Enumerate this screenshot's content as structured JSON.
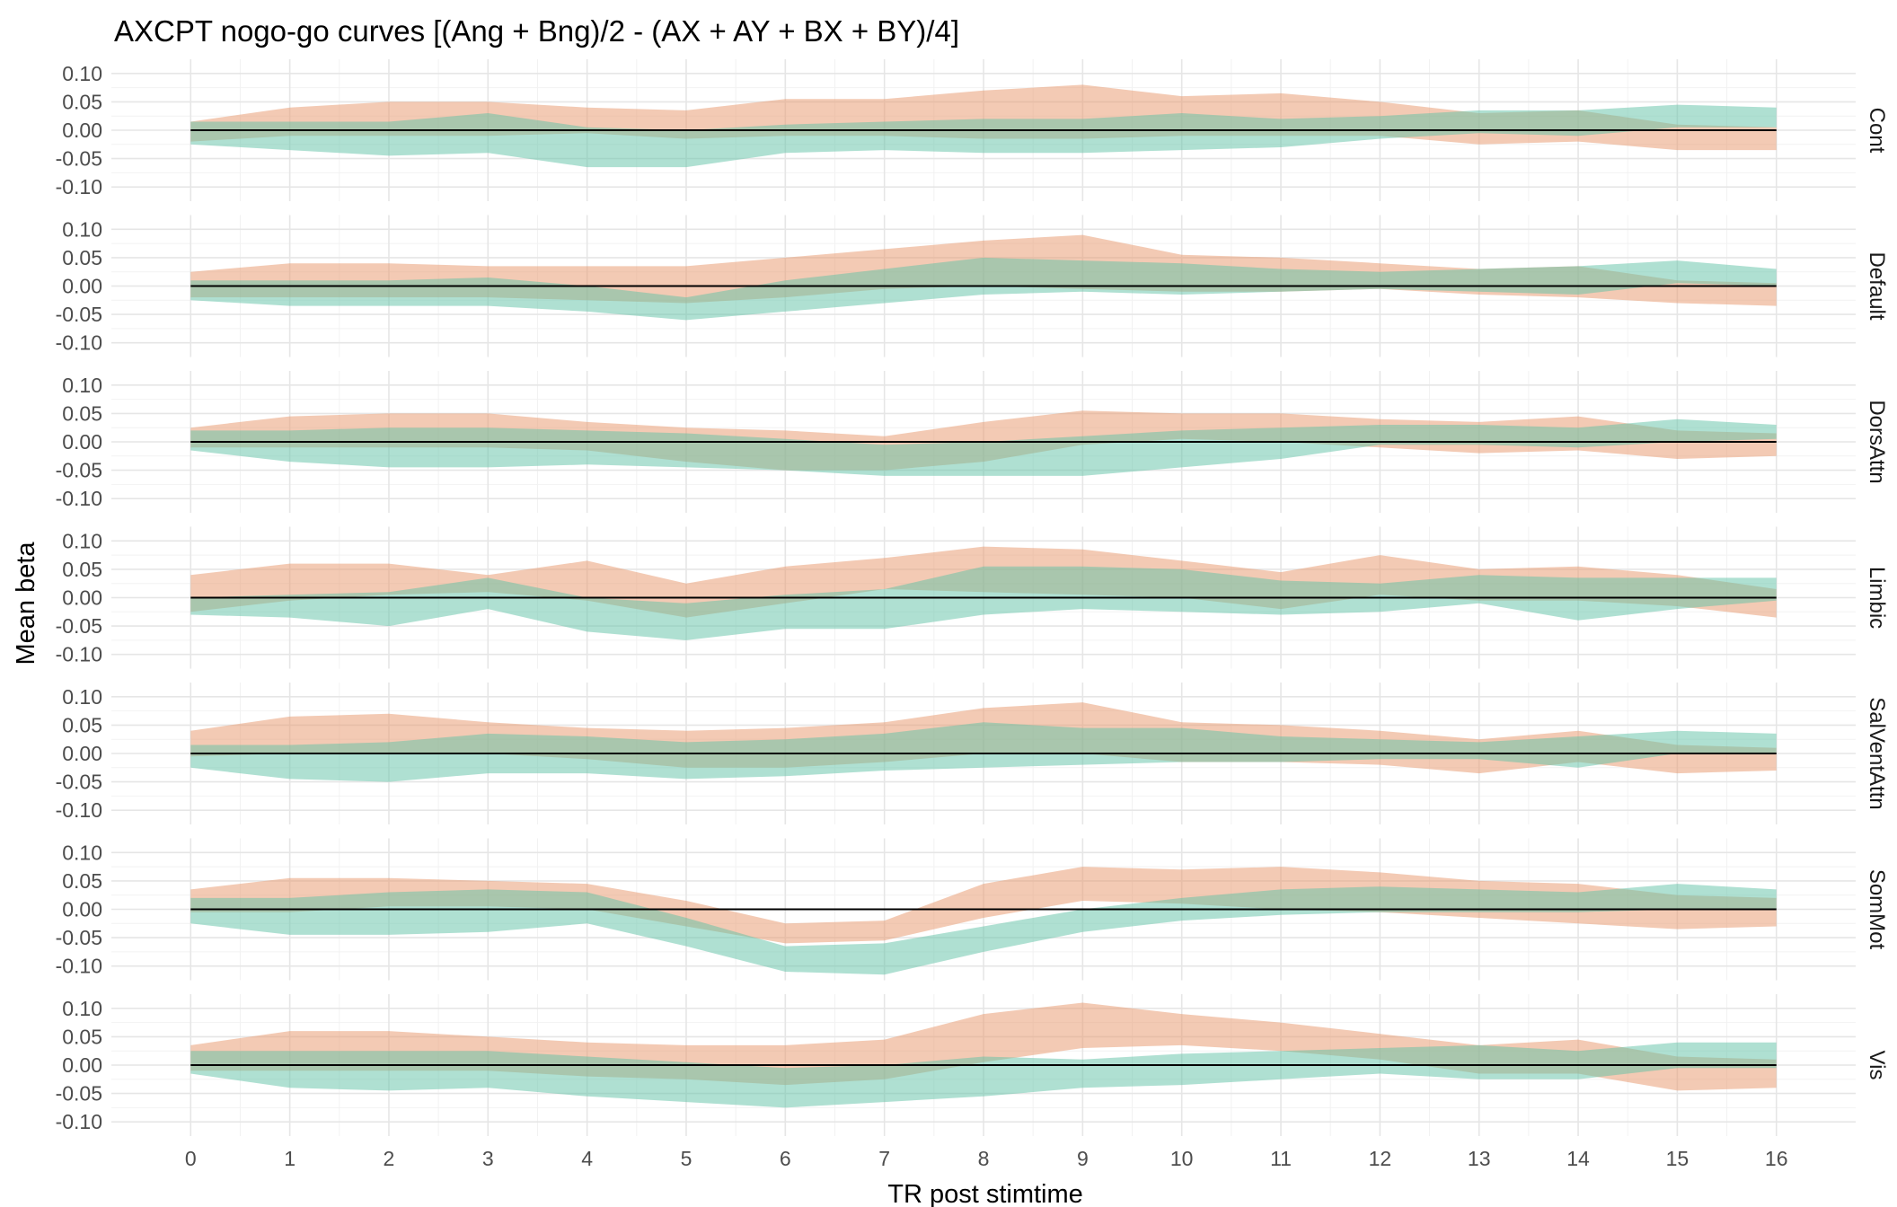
{
  "title": "AXCPT nogo-go curves [(Ang + Bng)/2 - (AX + AY + BX + BY)/4]",
  "chart_data": {
    "type": "area",
    "title": "AXCPT nogo-go curves [(Ang + Bng)/2 - (AX + AY + BX + BY)/4]",
    "xlabel": "TR post stimtime",
    "ylabel": "Mean beta",
    "x": [
      0,
      1,
      2,
      3,
      4,
      5,
      6,
      7,
      8,
      9,
      10,
      11,
      12,
      13,
      14,
      15,
      16
    ],
    "xlim": [
      -0.8,
      16.8
    ],
    "ylim": [
      -0.125,
      0.125
    ],
    "yticks": [
      -0.1,
      -0.05,
      0.0,
      0.05,
      0.1
    ],
    "ytick_labels": [
      "-0.10",
      "-0.05",
      "0.00",
      "0.05",
      "0.10"
    ],
    "grid": true,
    "reference_line": 0,
    "band_colors": [
      "#e8956a",
      "#5fc2a6"
    ],
    "band_opacity": 0.5,
    "panels": [
      {
        "label": "Cont",
        "bands": [
          {
            "lower": [
              -0.02,
              -0.01,
              -0.01,
              -0.01,
              -0.005,
              -0.015,
              -0.01,
              -0.01,
              -0.015,
              -0.015,
              -0.01,
              -0.01,
              -0.01,
              -0.025,
              -0.02,
              -0.035,
              -0.035
            ],
            "upper": [
              0.015,
              0.04,
              0.05,
              0.05,
              0.04,
              0.035,
              0.055,
              0.055,
              0.07,
              0.08,
              0.06,
              0.065,
              0.05,
              0.03,
              0.035,
              0.01,
              0.005
            ]
          },
          {
            "lower": [
              -0.025,
              -0.035,
              -0.045,
              -0.04,
              -0.065,
              -0.065,
              -0.04,
              -0.035,
              -0.04,
              -0.04,
              -0.035,
              -0.03,
              -0.015,
              -0.005,
              -0.01,
              0.005,
              0.005
            ],
            "upper": [
              0.015,
              0.015,
              0.015,
              0.03,
              0.005,
              0.0,
              0.01,
              0.015,
              0.02,
              0.02,
              0.03,
              0.02,
              0.025,
              0.035,
              0.035,
              0.045,
              0.04
            ]
          }
        ]
      },
      {
        "label": "Default",
        "bands": [
          {
            "lower": [
              -0.02,
              -0.02,
              -0.02,
              -0.02,
              -0.025,
              -0.03,
              -0.02,
              -0.005,
              0.0,
              -0.005,
              -0.01,
              -0.01,
              -0.005,
              -0.015,
              -0.02,
              -0.03,
              -0.035
            ],
            "upper": [
              0.025,
              0.04,
              0.04,
              0.035,
              0.035,
              0.035,
              0.05,
              0.065,
              0.08,
              0.09,
              0.055,
              0.05,
              0.04,
              0.03,
              0.035,
              0.01,
              0.005
            ]
          },
          {
            "lower": [
              -0.025,
              -0.035,
              -0.035,
              -0.035,
              -0.045,
              -0.06,
              -0.045,
              -0.03,
              -0.015,
              -0.01,
              -0.015,
              -0.01,
              -0.005,
              -0.01,
              -0.015,
              0.005,
              0.0
            ],
            "upper": [
              0.01,
              0.01,
              0.01,
              0.015,
              0.0,
              -0.02,
              0.01,
              0.03,
              0.05,
              0.045,
              0.04,
              0.03,
              0.025,
              0.03,
              0.035,
              0.045,
              0.03
            ]
          }
        ]
      },
      {
        "label": "DorsAttn",
        "bands": [
          {
            "lower": [
              -0.01,
              -0.01,
              -0.01,
              -0.01,
              -0.015,
              -0.035,
              -0.05,
              -0.05,
              -0.035,
              -0.005,
              0.005,
              0.0,
              -0.01,
              -0.02,
              -0.015,
              -0.03,
              -0.025
            ],
            "upper": [
              0.025,
              0.045,
              0.05,
              0.05,
              0.035,
              0.025,
              0.02,
              0.01,
              0.035,
              0.055,
              0.05,
              0.05,
              0.04,
              0.035,
              0.045,
              0.02,
              0.015
            ]
          },
          {
            "lower": [
              -0.015,
              -0.035,
              -0.045,
              -0.045,
              -0.04,
              -0.045,
              -0.05,
              -0.06,
              -0.06,
              -0.06,
              -0.045,
              -0.03,
              -0.005,
              -0.005,
              -0.01,
              0.0,
              0.005
            ],
            "upper": [
              0.02,
              0.02,
              0.025,
              0.025,
              0.02,
              0.015,
              0.005,
              -0.005,
              0.0,
              0.01,
              0.02,
              0.025,
              0.03,
              0.03,
              0.025,
              0.04,
              0.03
            ]
          }
        ]
      },
      {
        "label": "Limbic",
        "bands": [
          {
            "lower": [
              -0.025,
              -0.005,
              0.005,
              0.01,
              -0.005,
              -0.035,
              -0.01,
              0.015,
              0.01,
              0.005,
              0.0,
              -0.02,
              0.005,
              -0.005,
              -0.005,
              -0.015,
              -0.035
            ],
            "upper": [
              0.04,
              0.06,
              0.06,
              0.04,
              0.065,
              0.025,
              0.055,
              0.07,
              0.09,
              0.085,
              0.065,
              0.045,
              0.075,
              0.05,
              0.055,
              0.04,
              0.015
            ]
          },
          {
            "lower": [
              -0.03,
              -0.035,
              -0.05,
              -0.02,
              -0.06,
              -0.075,
              -0.055,
              -0.055,
              -0.03,
              -0.02,
              -0.025,
              -0.03,
              -0.025,
              -0.01,
              -0.04,
              -0.02,
              -0.005
            ],
            "upper": [
              0.0,
              0.005,
              0.01,
              0.035,
              0.0,
              -0.01,
              0.005,
              0.015,
              0.055,
              0.055,
              0.05,
              0.03,
              0.025,
              0.04,
              0.035,
              0.035,
              0.035
            ]
          }
        ]
      },
      {
        "label": "SalVentAttn",
        "bands": [
          {
            "lower": [
              -0.005,
              0.0,
              0.0,
              0.0,
              -0.01,
              -0.025,
              -0.025,
              -0.015,
              0.0,
              0.0,
              -0.015,
              -0.015,
              -0.02,
              -0.035,
              -0.015,
              -0.035,
              -0.03
            ],
            "upper": [
              0.04,
              0.065,
              0.07,
              0.055,
              0.045,
              0.04,
              0.045,
              0.055,
              0.08,
              0.09,
              0.055,
              0.05,
              0.04,
              0.025,
              0.04,
              0.015,
              0.01
            ]
          },
          {
            "lower": [
              -0.025,
              -0.045,
              -0.05,
              -0.035,
              -0.035,
              -0.045,
              -0.04,
              -0.03,
              -0.025,
              -0.02,
              -0.015,
              -0.015,
              -0.01,
              -0.01,
              -0.025,
              0.0,
              0.0
            ],
            "upper": [
              0.015,
              0.015,
              0.02,
              0.035,
              0.03,
              0.02,
              0.025,
              0.035,
              0.055,
              0.045,
              0.045,
              0.03,
              0.025,
              0.02,
              0.03,
              0.04,
              0.035
            ]
          }
        ]
      },
      {
        "label": "SomMot",
        "bands": [
          {
            "lower": [
              -0.005,
              -0.005,
              0.005,
              0.005,
              0.0,
              -0.03,
              -0.06,
              -0.055,
              -0.015,
              0.015,
              0.01,
              0.0,
              -0.005,
              -0.015,
              -0.025,
              -0.035,
              -0.03
            ],
            "upper": [
              0.035,
              0.055,
              0.055,
              0.05,
              0.045,
              0.015,
              -0.025,
              -0.02,
              0.045,
              0.075,
              0.07,
              0.075,
              0.065,
              0.05,
              0.045,
              0.025,
              0.02
            ]
          },
          {
            "lower": [
              -0.025,
              -0.045,
              -0.045,
              -0.04,
              -0.025,
              -0.065,
              -0.11,
              -0.115,
              -0.075,
              -0.04,
              -0.02,
              -0.01,
              -0.005,
              -0.005,
              -0.005,
              0.0,
              0.0
            ],
            "upper": [
              0.02,
              0.02,
              0.03,
              0.035,
              0.03,
              -0.015,
              -0.065,
              -0.06,
              -0.03,
              0.0,
              0.02,
              0.035,
              0.04,
              0.035,
              0.03,
              0.045,
              0.035
            ]
          }
        ]
      },
      {
        "label": "Vis",
        "bands": [
          {
            "lower": [
              -0.01,
              -0.01,
              -0.01,
              -0.01,
              -0.02,
              -0.025,
              -0.035,
              -0.025,
              0.005,
              0.03,
              0.035,
              0.025,
              0.01,
              -0.015,
              -0.015,
              -0.045,
              -0.04
            ],
            "upper": [
              0.035,
              0.06,
              0.06,
              0.05,
              0.04,
              0.035,
              0.035,
              0.045,
              0.09,
              0.11,
              0.09,
              0.075,
              0.055,
              0.035,
              0.045,
              0.015,
              0.01
            ]
          },
          {
            "lower": [
              -0.015,
              -0.04,
              -0.045,
              -0.04,
              -0.055,
              -0.065,
              -0.075,
              -0.065,
              -0.055,
              -0.04,
              -0.035,
              -0.025,
              -0.015,
              -0.025,
              -0.025,
              -0.005,
              -0.005
            ],
            "upper": [
              0.025,
              0.025,
              0.025,
              0.025,
              0.015,
              0.005,
              -0.005,
              0.0,
              0.015,
              0.01,
              0.02,
              0.025,
              0.03,
              0.035,
              0.025,
              0.04,
              0.04
            ]
          }
        ]
      }
    ]
  }
}
